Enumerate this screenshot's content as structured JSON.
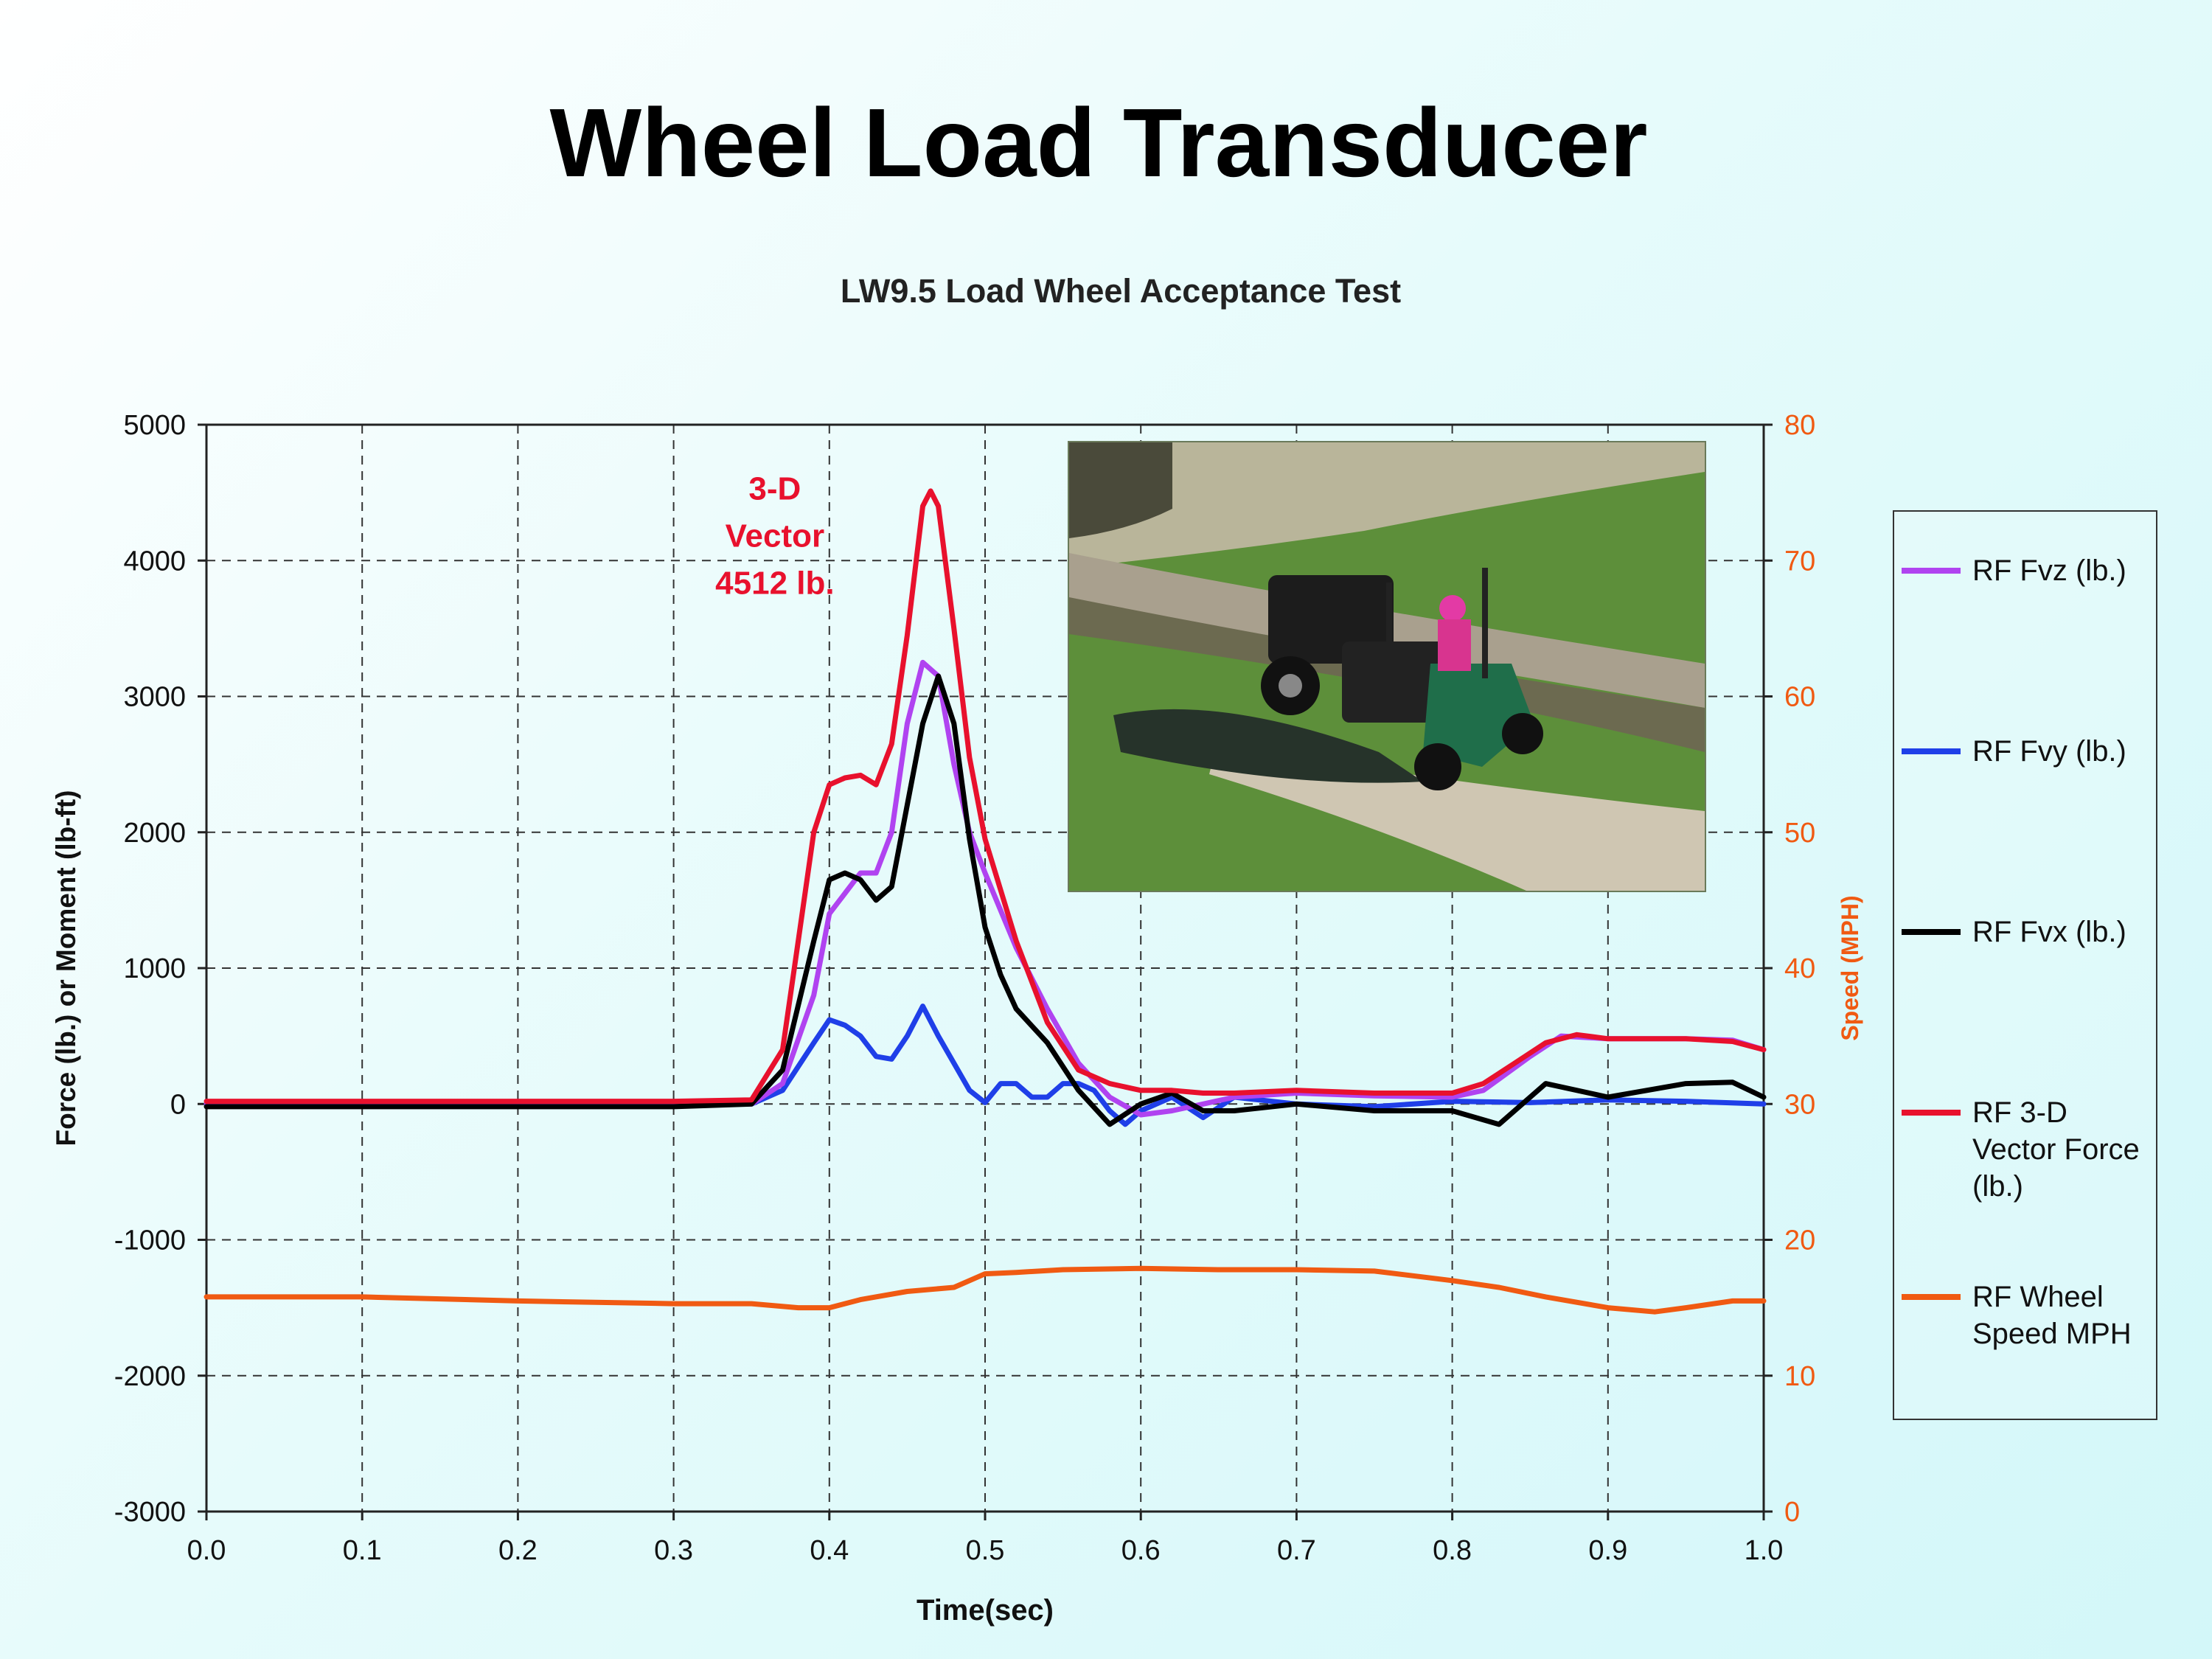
{
  "slide": {
    "title": "Wheel Load Transducer"
  },
  "chart_data": {
    "type": "line",
    "title": "LW9.5 Load Wheel Acceptance Test",
    "xlabel": "Time(sec)",
    "ylabel": "Force (lb.) or Moment (lb-ft)",
    "y2label": "Speed (MPH)",
    "xlim": [
      0.0,
      1.0
    ],
    "ylim": [
      -3000,
      5000
    ],
    "y2lim": [
      0,
      80
    ],
    "grid": true,
    "legend_position": "right",
    "x_ticks": [
      "0.0",
      "0.1",
      "0.2",
      "0.3",
      "0.4",
      "0.5",
      "0.6",
      "0.7",
      "0.8",
      "0.9",
      "1.0"
    ],
    "y_ticks": [
      "5000",
      "4000",
      "3000",
      "2000",
      "1000",
      "0",
      "-1000",
      "-2000",
      "-3000"
    ],
    "y2_ticks": [
      "80",
      "70",
      "60",
      "50",
      "40",
      "30",
      "20",
      "10",
      "0"
    ],
    "annotation": {
      "lines": [
        "3-D",
        "Vector",
        "4512 lb."
      ],
      "x": 0.365,
      "y": 4450,
      "color": "#e8112d"
    },
    "series": [
      {
        "name": "RF Fvz (lb.)",
        "color": "#b043f0",
        "axis": "left",
        "x": [
          0.0,
          0.1,
          0.2,
          0.3,
          0.35,
          0.37,
          0.39,
          0.4,
          0.42,
          0.43,
          0.44,
          0.45,
          0.46,
          0.47,
          0.48,
          0.49,
          0.5,
          0.52,
          0.54,
          0.56,
          0.58,
          0.6,
          0.62,
          0.64,
          0.66,
          0.7,
          0.75,
          0.8,
          0.82,
          0.85,
          0.87,
          0.9,
          0.95,
          0.98,
          1.0
        ],
        "y": [
          0,
          0,
          0,
          0,
          0,
          150,
          800,
          1400,
          1700,
          1700,
          2000,
          2800,
          3250,
          3150,
          2500,
          2000,
          1700,
          1150,
          700,
          300,
          50,
          -80,
          -50,
          0,
          50,
          80,
          60,
          50,
          100,
          350,
          500,
          480,
          480,
          470,
          400
        ]
      },
      {
        "name": "RF Fvy (lb.)",
        "color": "#1f3fe8",
        "axis": "left",
        "x": [
          0.0,
          0.1,
          0.2,
          0.3,
          0.35,
          0.37,
          0.39,
          0.4,
          0.41,
          0.42,
          0.43,
          0.44,
          0.45,
          0.46,
          0.47,
          0.48,
          0.49,
          0.5,
          0.51,
          0.52,
          0.53,
          0.54,
          0.55,
          0.56,
          0.57,
          0.58,
          0.59,
          0.6,
          0.62,
          0.64,
          0.66,
          0.7,
          0.75,
          0.8,
          0.85,
          0.9,
          0.95,
          1.0
        ],
        "y": [
          0,
          0,
          0,
          0,
          0,
          100,
          450,
          620,
          580,
          500,
          350,
          330,
          500,
          720,
          500,
          300,
          100,
          10,
          150,
          150,
          50,
          50,
          150,
          150,
          100,
          -50,
          -150,
          -50,
          50,
          -100,
          50,
          0,
          -20,
          20,
          10,
          30,
          20,
          0
        ]
      },
      {
        "name": "RF Fvx (lb.)",
        "color": "#000000",
        "axis": "left",
        "x": [
          0.0,
          0.1,
          0.2,
          0.3,
          0.35,
          0.37,
          0.39,
          0.4,
          0.41,
          0.42,
          0.43,
          0.44,
          0.45,
          0.46,
          0.47,
          0.48,
          0.49,
          0.5,
          0.51,
          0.52,
          0.54,
          0.56,
          0.58,
          0.6,
          0.62,
          0.64,
          0.66,
          0.7,
          0.75,
          0.8,
          0.83,
          0.86,
          0.9,
          0.95,
          0.98,
          1.0
        ],
        "y": [
          -20,
          -20,
          -20,
          -20,
          0,
          250,
          1200,
          1650,
          1700,
          1650,
          1500,
          1600,
          2200,
          2800,
          3150,
          2800,
          1950,
          1300,
          950,
          700,
          450,
          100,
          -150,
          0,
          80,
          -50,
          -50,
          0,
          -50,
          -50,
          -150,
          150,
          50,
          150,
          160,
          50
        ]
      },
      {
        "name": "RF 3-D Vector Force (lb.)",
        "color": "#e8112d",
        "axis": "left",
        "x": [
          0.0,
          0.1,
          0.2,
          0.3,
          0.35,
          0.37,
          0.38,
          0.39,
          0.4,
          0.41,
          0.42,
          0.43,
          0.44,
          0.45,
          0.46,
          0.465,
          0.47,
          0.48,
          0.49,
          0.5,
          0.52,
          0.54,
          0.56,
          0.58,
          0.6,
          0.62,
          0.64,
          0.66,
          0.7,
          0.75,
          0.8,
          0.82,
          0.84,
          0.86,
          0.88,
          0.9,
          0.95,
          0.98,
          1.0
        ],
        "y": [
          20,
          20,
          20,
          20,
          30,
          400,
          1200,
          2000,
          2350,
          2400,
          2420,
          2350,
          2650,
          3450,
          4400,
          4512,
          4400,
          3500,
          2550,
          1950,
          1200,
          600,
          250,
          150,
          100,
          100,
          80,
          80,
          100,
          80,
          80,
          150,
          300,
          450,
          510,
          480,
          480,
          460,
          400
        ]
      },
      {
        "name": "RF Wheel Speed MPH",
        "color": "#f05a12",
        "axis": "right",
        "x": [
          0.0,
          0.1,
          0.2,
          0.3,
          0.35,
          0.38,
          0.4,
          0.42,
          0.45,
          0.48,
          0.5,
          0.52,
          0.55,
          0.6,
          0.65,
          0.7,
          0.75,
          0.8,
          0.83,
          0.86,
          0.9,
          0.93,
          0.95,
          0.98,
          1.0
        ],
        "y": [
          15.8,
          15.8,
          15.5,
          15.3,
          15.3,
          15.0,
          15.0,
          15.6,
          16.2,
          16.5,
          17.5,
          17.6,
          17.8,
          17.9,
          17.8,
          17.8,
          17.7,
          17.0,
          16.5,
          15.8,
          15.0,
          14.7,
          15.0,
          15.5,
          15.5
        ]
      }
    ]
  }
}
